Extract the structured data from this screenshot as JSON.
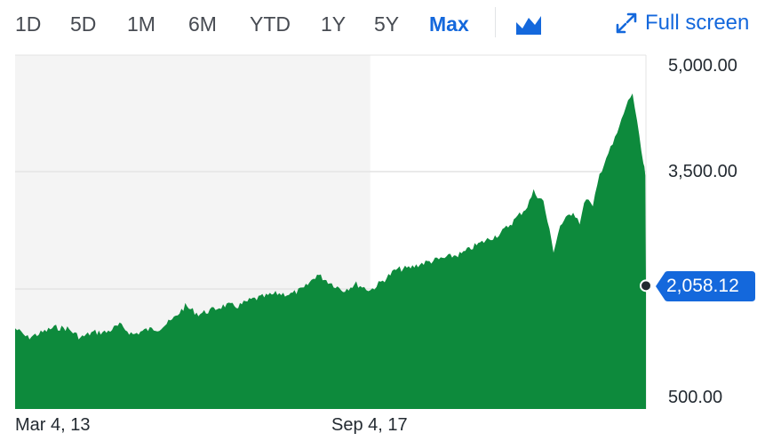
{
  "toolbar": {
    "ranges": [
      "1D",
      "5D",
      "1M",
      "6M",
      "YTD",
      "1Y",
      "5Y",
      "Max"
    ],
    "active_range": "Max",
    "chart_type_icon": "mountain-chart-icon",
    "fullscreen_label": "Full screen",
    "fullscreen_icon": "expand-arrows-icon"
  },
  "colors": {
    "accent": "#1468dc",
    "area_fill": "#0d8a3c",
    "shade": "#f4f4f4",
    "grid": "#e3e3e3"
  },
  "current_price": "2,058.12",
  "chart_data": {
    "type": "area",
    "title": "",
    "xlabel": "",
    "ylabel": "",
    "x_ticks": [
      "Mar 4, 13",
      "Sep 4, 17"
    ],
    "y_ticks": [
      "5,000.00",
      "3,500.00",
      "500.00"
    ],
    "ylim": [
      500,
      5000
    ],
    "x_range": [
      "2013-03-04",
      "2021-03-04"
    ],
    "shaded_region": [
      "2013-03-04",
      "2017-09-04"
    ],
    "grid": true,
    "last_value": 2058.12,
    "series": [
      {
        "values": [
          [
            "2013-03-04",
            1520
          ],
          [
            "2013-05-01",
            1400
          ],
          [
            "2013-07-01",
            1460
          ],
          [
            "2013-09-01",
            1530
          ],
          [
            "2013-11-01",
            1520
          ],
          [
            "2014-01-01",
            1400
          ],
          [
            "2014-03-01",
            1470
          ],
          [
            "2014-05-01",
            1470
          ],
          [
            "2014-07-01",
            1560
          ],
          [
            "2014-09-01",
            1440
          ],
          [
            "2014-11-01",
            1500
          ],
          [
            "2015-01-01",
            1520
          ],
          [
            "2015-03-01",
            1620
          ],
          [
            "2015-05-01",
            1800
          ],
          [
            "2015-07-01",
            1700
          ],
          [
            "2015-09-01",
            1750
          ],
          [
            "2015-11-01",
            1810
          ],
          [
            "2016-01-01",
            1800
          ],
          [
            "2016-03-01",
            1880
          ],
          [
            "2016-05-01",
            1920
          ],
          [
            "2016-07-01",
            1960
          ],
          [
            "2016-09-01",
            1950
          ],
          [
            "2016-11-01",
            2020
          ],
          [
            "2017-01-01",
            2200
          ],
          [
            "2017-03-01",
            2100
          ],
          [
            "2017-05-01",
            2000
          ],
          [
            "2017-07-01",
            2080
          ],
          [
            "2017-09-04",
            2000
          ],
          [
            "2017-11-01",
            2120
          ],
          [
            "2018-01-01",
            2260
          ],
          [
            "2018-03-01",
            2280
          ],
          [
            "2018-05-01",
            2340
          ],
          [
            "2018-07-01",
            2380
          ],
          [
            "2018-09-01",
            2420
          ],
          [
            "2018-11-01",
            2460
          ],
          [
            "2019-01-01",
            2560
          ],
          [
            "2019-03-01",
            2640
          ],
          [
            "2019-05-01",
            2720
          ],
          [
            "2019-07-01",
            2880
          ],
          [
            "2019-09-01",
            3060
          ],
          [
            "2019-10-01",
            3250
          ],
          [
            "2019-11-15",
            3120
          ],
          [
            "2020-01-01",
            2500
          ],
          [
            "2020-02-01",
            2820
          ],
          [
            "2020-04-01",
            3000
          ],
          [
            "2020-05-01",
            2860
          ],
          [
            "2020-06-01",
            3180
          ],
          [
            "2020-07-01",
            3040
          ],
          [
            "2020-08-01",
            3460
          ],
          [
            "2020-09-01",
            3680
          ],
          [
            "2020-10-01",
            3840
          ],
          [
            "2020-11-01",
            4060
          ],
          [
            "2020-12-01",
            4320
          ],
          [
            "2021-01-01",
            4500
          ],
          [
            "2021-02-01",
            3920
          ],
          [
            "2021-02-20",
            3600
          ],
          [
            "2021-03-01",
            3450
          ],
          [
            "2021-03-04",
            2058.12
          ]
        ]
      }
    ]
  }
}
